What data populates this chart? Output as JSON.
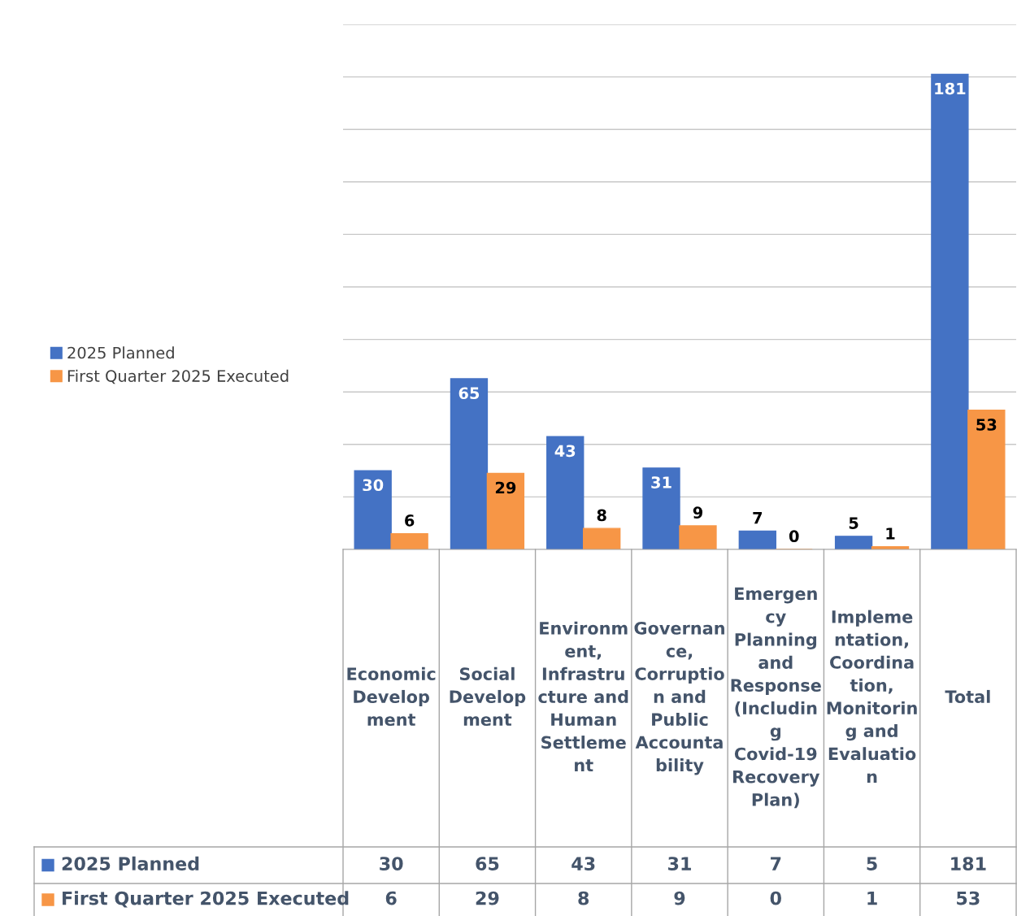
{
  "chart_data": {
    "type": "bar",
    "categories": [
      "Economic Development",
      "Social Development",
      "Environment, Infrastructure and Human Settlement",
      "Governance, Corruption and Public Accountability",
      "Emergency Planning and Response (Including Covid-19 Recovery Plan)",
      "Implementation, Coordination, Monitoring and Evaluation",
      "Total"
    ],
    "series": [
      {
        "name": "2025 Planned",
        "color": "#4472c4",
        "values": [
          30,
          65,
          43,
          31,
          7,
          5,
          181
        ],
        "value_labels": [
          "30",
          "65",
          "43",
          "31",
          "7",
          "5",
          "181"
        ]
      },
      {
        "name": "First Quarter 2025 Executed",
        "color": "#f79646",
        "values": [
          6,
          29,
          8,
          9,
          0,
          1,
          53
        ],
        "value_labels": [
          "6",
          "29",
          "8",
          "9",
          "0",
          "1",
          "53"
        ]
      }
    ],
    "ylim": [
      0,
      200
    ],
    "yticks": [
      {
        "value": 0,
        "label": null
      },
      {
        "value": 20,
        "label": null
      },
      {
        "value": 40,
        "label": null
      },
      {
        "value": 60,
        "label": null
      },
      {
        "value": 80,
        "label": null
      },
      {
        "value": 100,
        "label": null
      },
      {
        "value": 120,
        "label": null
      },
      {
        "value": 140,
        "label": null
      },
      {
        "value": 160,
        "label": null
      },
      {
        "value": 180,
        "label": null
      },
      {
        "value": 200,
        "label": null
      }
    ],
    "annotations": [
      "30",
      "65",
      "43",
      "31",
      "7",
      "5",
      "181",
      "6",
      "29",
      "8",
      "9",
      "0",
      "1",
      "53"
    ],
    "grid": "y",
    "legend": "left",
    "tick_labels": "x"
  }
}
